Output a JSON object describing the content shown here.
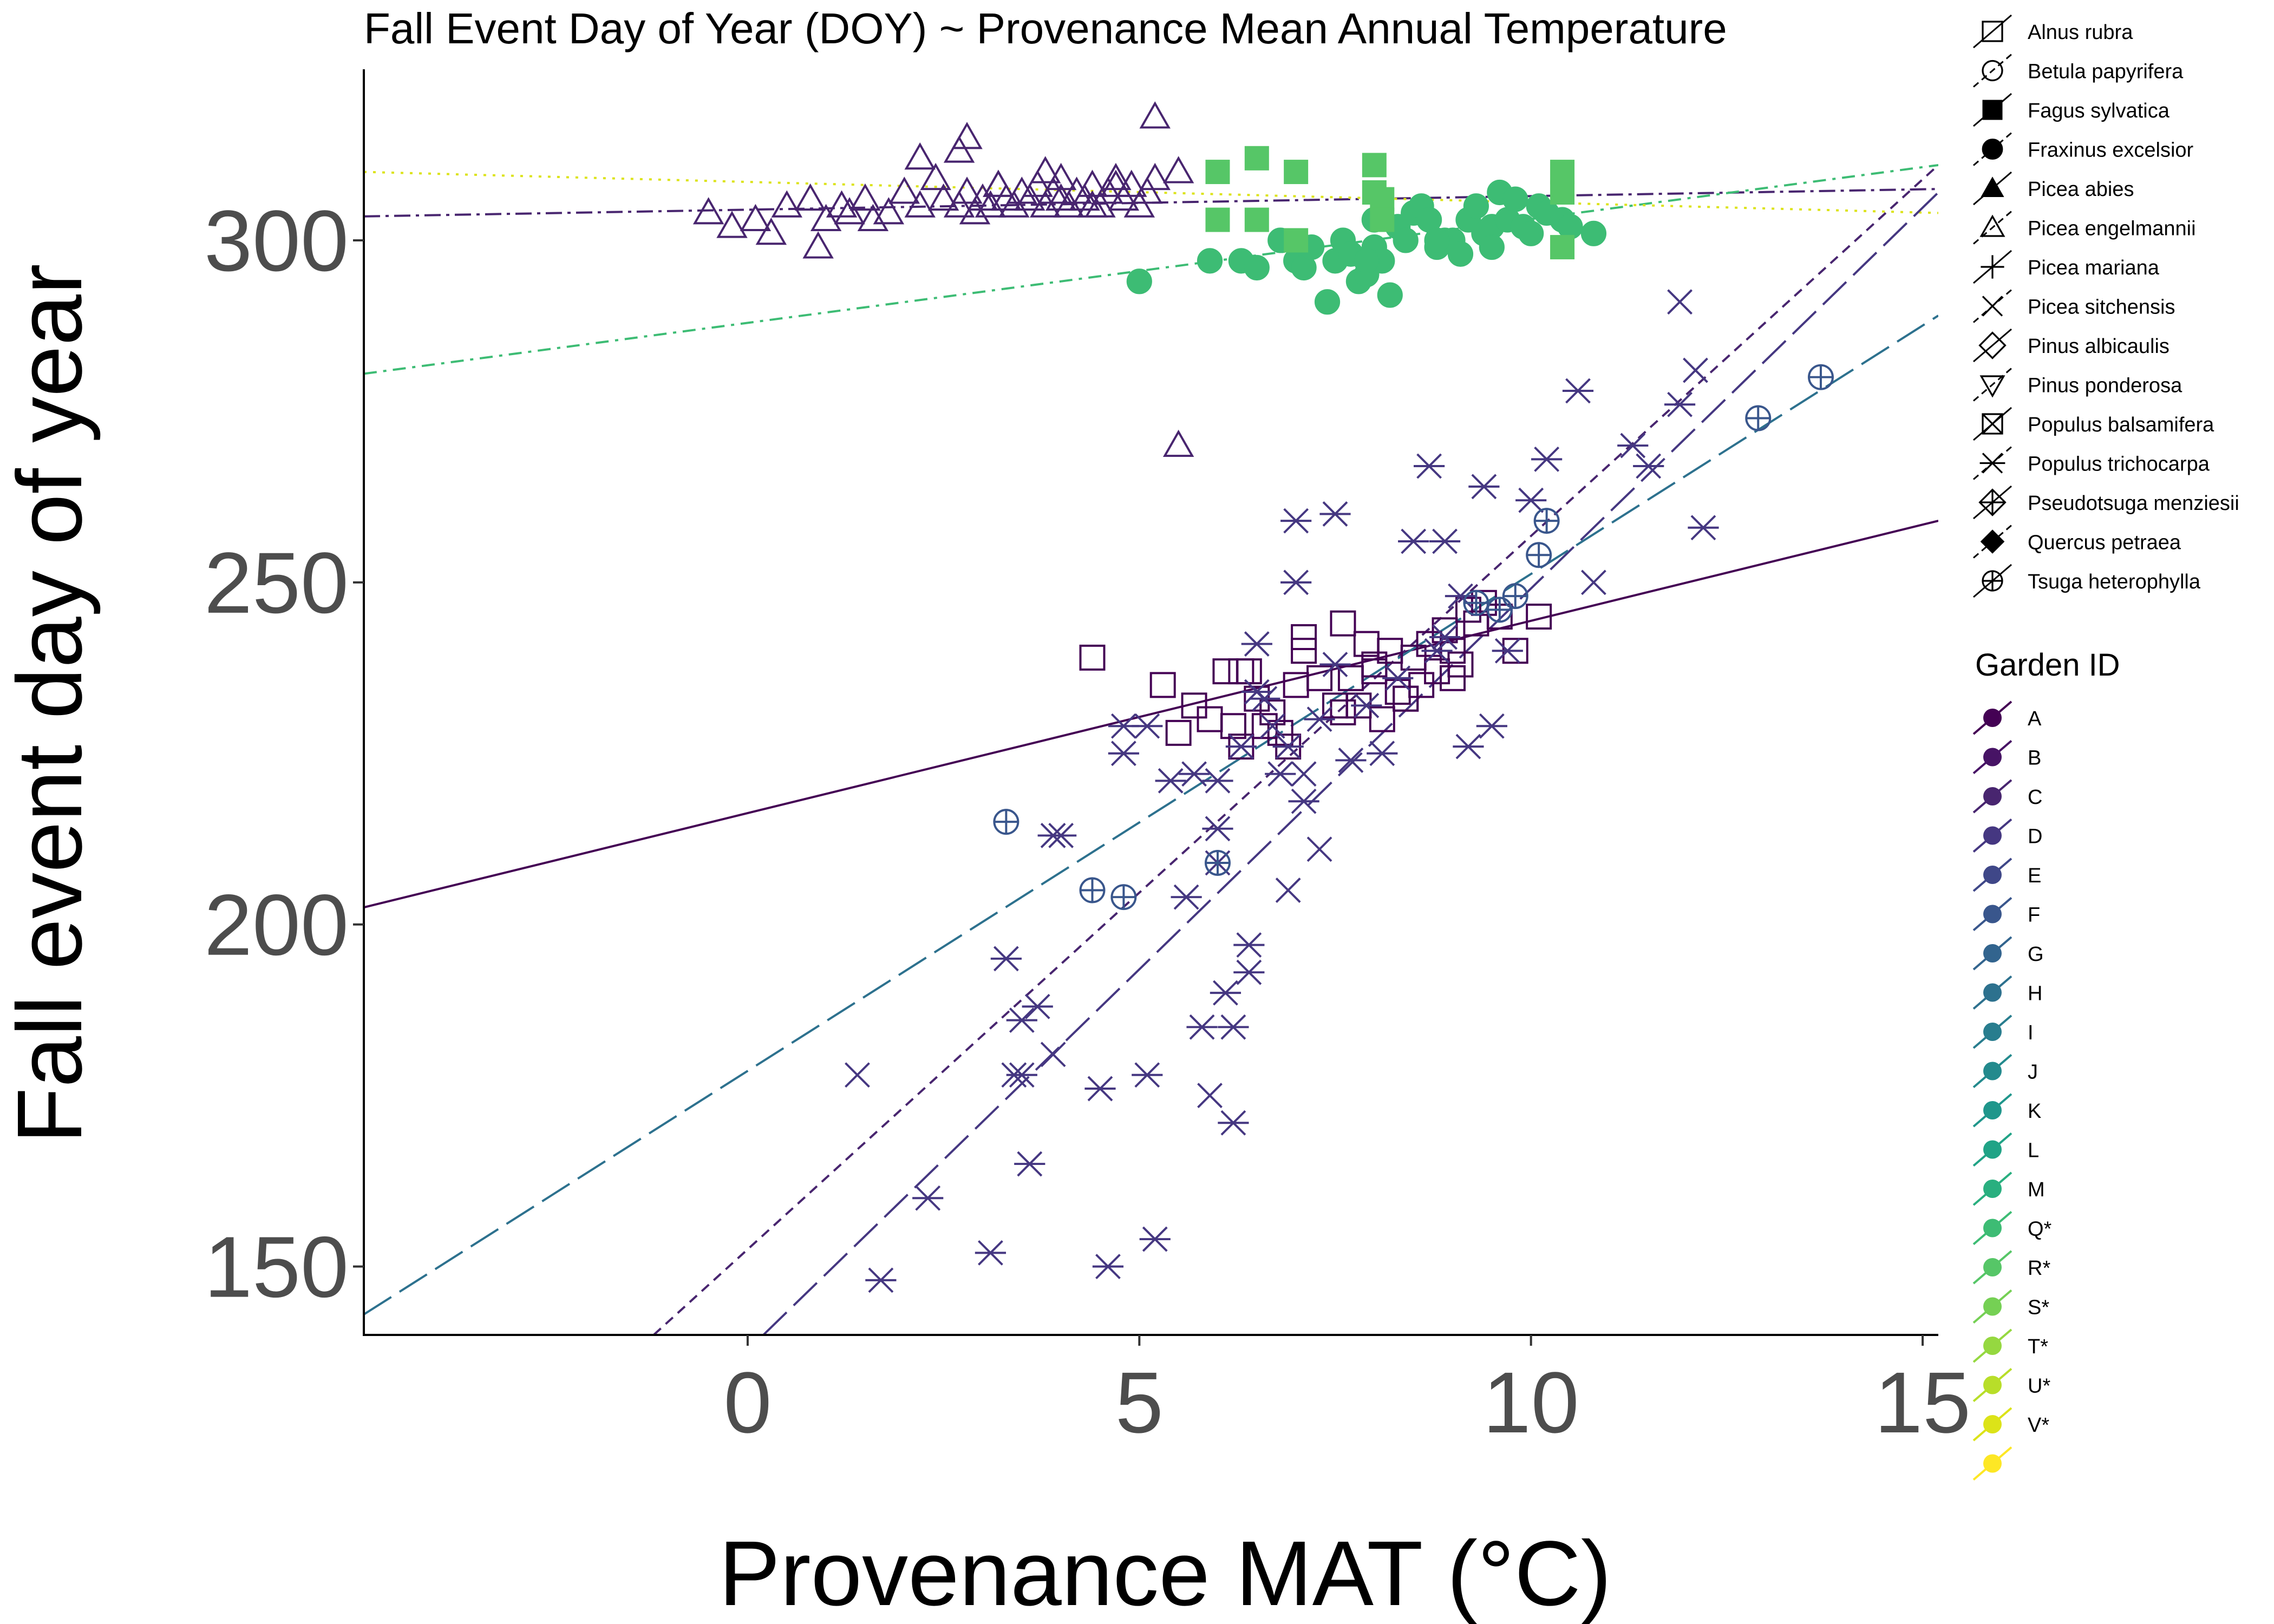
{
  "chart_data": {
    "type": "scatter",
    "title": "Fall Event Day of Year (DOY) ~ Provenance Mean Annual Temperature",
    "xlabel": "Provenance MAT (°C)",
    "ylabel": "Fall event day of year",
    "xlim": [
      -4.9,
      15.2
    ],
    "ylim": [
      140,
      325
    ],
    "x_ticks": [
      0,
      5,
      10,
      15
    ],
    "x_tick_labels": [
      "0",
      "5",
      "10",
      "15"
    ],
    "y_ticks": [
      150,
      200,
      250,
      300
    ],
    "y_tick_labels": [
      "150",
      "200",
      "250",
      "300"
    ],
    "grid": false,
    "legend_placement": "right",
    "species_legend": {
      "items": [
        {
          "label": "Alnus rubra",
          "symbol": "square-open"
        },
        {
          "label": "Betula papyrifera",
          "symbol": "circle-open"
        },
        {
          "label": "Fagus sylvatica",
          "symbol": "square-filled"
        },
        {
          "label": "Fraxinus excelsior",
          "symbol": "circle-filled"
        },
        {
          "label": "Picea abies",
          "symbol": "triangle-filled"
        },
        {
          "label": "Picea engelmannii",
          "symbol": "triangle-open"
        },
        {
          "label": "Picea mariana",
          "symbol": "plus"
        },
        {
          "label": "Picea sitchensis",
          "symbol": "cross"
        },
        {
          "label": "Pinus albicaulis",
          "symbol": "diamond-open"
        },
        {
          "label": "Pinus ponderosa",
          "symbol": "triangle-down-open"
        },
        {
          "label": "Populus balsamifera",
          "symbol": "square-cross"
        },
        {
          "label": "Populus trichocarpa",
          "symbol": "asterisk"
        },
        {
          "label": "Pseudotsuga menziesii",
          "symbol": "diamond-plus"
        },
        {
          "label": "Quercus petraea",
          "symbol": "diamond-filled"
        },
        {
          "label": "Tsuga heterophylla",
          "symbol": "circle-plus"
        }
      ]
    },
    "garden_legend": {
      "title": "Garden ID",
      "items": [
        {
          "label": "A",
          "color": "#440154"
        },
        {
          "label": "B",
          "color": "#471365"
        },
        {
          "label": "C",
          "color": "#48256f"
        },
        {
          "label": "D",
          "color": "#453781"
        },
        {
          "label": "E",
          "color": "#3f4788"
        },
        {
          "label": "F",
          "color": "#39568c"
        },
        {
          "label": "G",
          "color": "#32648e"
        },
        {
          "label": "H",
          "color": "#2d718e"
        },
        {
          "label": "I",
          "color": "#287d8e"
        },
        {
          "label": "J",
          "color": "#238a8d"
        },
        {
          "label": "K",
          "color": "#1f968b"
        },
        {
          "label": "L",
          "color": "#20a386"
        },
        {
          "label": "M",
          "color": "#29af7f"
        },
        {
          "label": "Q*",
          "color": "#3dbc74"
        },
        {
          "label": "R*",
          "color": "#56c667"
        },
        {
          "label": "S*",
          "color": "#75d054"
        },
        {
          "label": "T*",
          "color": "#95d840"
        },
        {
          "label": "U*",
          "color": "#b8de29"
        },
        {
          "label": "V*",
          "color": "#dce318"
        },
        {
          "label": "",
          "color": "#fde725"
        }
      ]
    },
    "trend_lines": [
      {
        "group": "Picea engelmannii",
        "color": "#48256f",
        "dash": "dashdot",
        "x": [
          -4.9,
          15.2
        ],
        "y": [
          303.5,
          307.5
        ]
      },
      {
        "group": "Fagus sylvatica / Fraxinus excelsior",
        "color": "#3dbc74",
        "dash": "dashdot-long",
        "x": [
          -4.9,
          15.2
        ],
        "y": [
          280.5,
          311
        ]
      },
      {
        "group": "Fagus sylvatica",
        "color": "#dce318",
        "dash": "dotted",
        "x": [
          -4.9,
          15.2
        ],
        "y": [
          310,
          304
        ]
      },
      {
        "group": "Alnus rubra",
        "color": "#440154",
        "dash": "solid",
        "x": [
          -4.9,
          15.2
        ],
        "y": [
          202.5,
          259
        ]
      },
      {
        "group": "Populus trichocarpa",
        "color": "#453781",
        "dash": "longdash",
        "x": [
          0.2,
          15.2
        ],
        "y": [
          140,
          307
        ]
      },
      {
        "group": "Populus trichocarpa",
        "color": "#48256f",
        "dash": "dashed",
        "x": [
          -1.2,
          15.2
        ],
        "y": [
          140,
          311
        ]
      },
      {
        "group": "Tsuga heterophylla",
        "color": "#2d718e",
        "dash": "longdash",
        "x": [
          -4.9,
          15.2
        ],
        "y": [
          143,
          289
        ]
      }
    ],
    "series": [
      {
        "name": "Picea engelmannii",
        "symbol": "triangle-open",
        "color": "#48256f",
        "x": [
          -0.5,
          -0.2,
          0.1,
          0.3,
          0.5,
          0.8,
          1.0,
          1.2,
          1.5,
          1.8,
          2.0,
          2.2,
          2.5,
          2.7,
          2.8,
          2.9,
          3.0,
          3.1,
          3.2,
          3.3,
          3.4,
          3.5,
          3.6,
          3.7,
          3.8,
          3.9,
          4.0,
          4.1,
          4.2,
          4.3,
          4.4,
          4.5,
          4.6,
          4.7,
          4.8,
          4.9,
          5.0,
          5.1,
          5.2,
          5.5,
          2.2,
          2.8,
          2.7,
          3.2,
          4.0,
          4.7,
          5.2,
          1.3,
          0.9,
          1.6,
          2.4,
          3.8,
          4.4,
          5.5
        ],
        "y": [
          304,
          302,
          303,
          301,
          305,
          306,
          303,
          305,
          306,
          304,
          307,
          305,
          306,
          305,
          307,
          304,
          306,
          305,
          308,
          306,
          305,
          307,
          306,
          308,
          305,
          307,
          306,
          305,
          307,
          306,
          308,
          305,
          307,
          309,
          306,
          308,
          305,
          307,
          309,
          310,
          312,
          315,
          313,
          308,
          309,
          308,
          318,
          304,
          299,
          303,
          309,
          310,
          305,
          270
        ]
      },
      {
        "name": "Fraxinus excelsior",
        "symbol": "circle-filled",
        "color": "#3dbc74",
        "x": [
          5.0,
          5.9,
          6.3,
          6.5,
          6.8,
          7.0,
          7.1,
          7.2,
          7.4,
          7.5,
          7.6,
          7.7,
          7.8,
          7.9,
          8.0,
          8.0,
          8.1,
          8.2,
          8.3,
          8.5,
          8.6,
          8.7,
          8.8,
          8.9,
          9.0,
          9.1,
          9.2,
          9.3,
          9.4,
          9.5,
          9.6,
          9.7,
          9.8,
          9.9,
          10.0,
          10.1,
          10.2,
          10.4,
          10.5,
          10.8,
          8.4,
          9.5,
          7.9,
          8.8
        ],
        "y": [
          294,
          297,
          297,
          296,
          300,
          297,
          296,
          299,
          291,
          297,
          300,
          298,
          294,
          295,
          299,
          303,
          297,
          292,
          302,
          304,
          305,
          303,
          299,
          300,
          300,
          298,
          303,
          305,
          301,
          302,
          307,
          303,
          306,
          302,
          301,
          305,
          304,
          303,
          302,
          301,
          300,
          299,
          297,
          300
        ]
      },
      {
        "name": "Fagus sylvatica",
        "symbol": "square-filled",
        "color": "#56c667",
        "x": [
          6.0,
          6.0,
          6.5,
          6.5,
          7.0,
          7.0,
          8.0,
          8.0,
          8.1,
          8.1,
          10.4,
          10.4,
          10.4
        ],
        "y": [
          310,
          303,
          312,
          303,
          310,
          300,
          311,
          307,
          306,
          303,
          310,
          307,
          299
        ]
      },
      {
        "name": "Alnus rubra",
        "symbol": "square-open",
        "color": "#440154",
        "x": [
          4.4,
          5.3,
          5.5,
          5.7,
          5.9,
          6.1,
          6.2,
          6.3,
          6.4,
          6.5,
          6.6,
          6.7,
          6.8,
          6.9,
          7.0,
          7.1,
          7.3,
          7.5,
          7.6,
          7.7,
          7.8,
          7.9,
          8.0,
          8.1,
          8.2,
          8.3,
          8.4,
          8.5,
          8.6,
          8.7,
          8.8,
          8.9,
          9.0,
          9.1,
          9.2,
          9.3,
          9.4,
          9.6,
          9.8,
          10.1,
          6.3,
          7.1,
          7.6,
          8.0,
          8.4,
          9.0
        ],
        "y": [
          239,
          235,
          228,
          232,
          230,
          237,
          229,
          226,
          237,
          233,
          229,
          231,
          228,
          226,
          235,
          240,
          236,
          232,
          244,
          236,
          232,
          241,
          238,
          230,
          240,
          234,
          233,
          239,
          235,
          241,
          237,
          243,
          240,
          238,
          246,
          244,
          247,
          245,
          240,
          245,
          237,
          242,
          231,
          237,
          233,
          236
        ]
      },
      {
        "name": "Populus trichocarpa",
        "symbol": "asterisk",
        "color": "#453781",
        "x": [
          1.7,
          2.3,
          3.1,
          3.3,
          3.5,
          3.6,
          3.7,
          3.9,
          4.5,
          4.6,
          4.8,
          4.8,
          5.2,
          5.4,
          5.6,
          5.8,
          6.0,
          6.0,
          6.1,
          6.2,
          6.3,
          6.4,
          6.5,
          6.6,
          6.8,
          6.9,
          7.0,
          7.1,
          7.3,
          7.5,
          7.7,
          7.9,
          8.1,
          8.3,
          8.5,
          8.7,
          8.8,
          8.9,
          9.1,
          9.2,
          9.4,
          9.7,
          10.0,
          10.2,
          10.6,
          11.3,
          11.5,
          11.9,
          12.2,
          5.1,
          5.7,
          6.4,
          7.5,
          8.9,
          6.5,
          7.0,
          3.5,
          4.0,
          5.1,
          6.2,
          9.5
        ],
        "y": [
          148,
          160,
          152,
          195,
          186,
          165,
          188,
          213,
          176,
          150,
          225,
          229,
          154,
          221,
          204,
          185,
          221,
          214,
          190,
          185,
          226,
          193,
          234,
          233,
          222,
          226,
          250,
          218,
          230,
          238,
          224,
          232,
          225,
          236,
          256,
          267,
          240,
          242,
          248,
          226,
          264,
          240,
          262,
          268,
          278,
          270,
          267,
          276,
          258,
          178,
          222,
          197,
          260,
          256,
          241,
          259,
          178,
          213,
          229,
          171,
          229
        ]
      },
      {
        "name": "Picea sitchensis",
        "symbol": "cross",
        "color": "#453781",
        "x": [
          1.4,
          3.4,
          3.9,
          5.9,
          6.0,
          6.9,
          7.3,
          10.8,
          11.9,
          12.1,
          6.7,
          7.1
        ],
        "y": [
          178,
          178,
          181,
          175,
          209,
          205,
          211,
          250,
          291,
          281,
          229,
          222
        ]
      },
      {
        "name": "Tsuga heterophylla",
        "symbol": "circle-plus",
        "color": "#39568c",
        "x": [
          3.3,
          4.4,
          4.8,
          6.0,
          9.6,
          9.8,
          10.1,
          10.2,
          12.9,
          13.7,
          9.3
        ],
        "y": [
          215,
          205,
          204,
          209,
          246,
          248,
          254,
          259,
          274,
          280,
          247
        ]
      }
    ]
  }
}
